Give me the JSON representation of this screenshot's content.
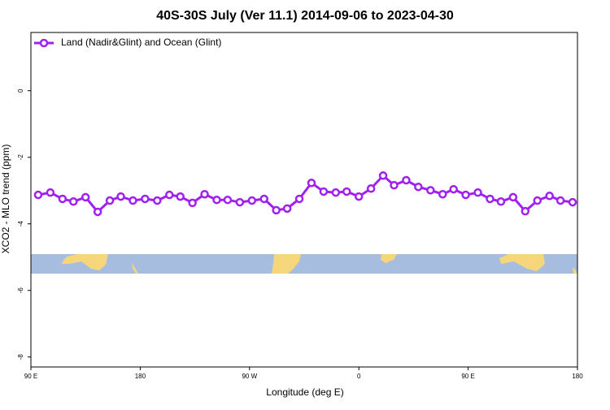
{
  "chart_data": {
    "type": "line",
    "title": "40S-30S July (Ver 11.1)   2014-09-06 to 2023-04-30",
    "x_label": "Longitude (deg E)",
    "y_label": "XCO2 - MLO trend (ppm)",
    "x": [
      96,
      106,
      116,
      125,
      135,
      145,
      155,
      164,
      174,
      184,
      194,
      204,
      213,
      223,
      233,
      243,
      252,
      262,
      272,
      282,
      292,
      301,
      311,
      321,
      331,
      341,
      350,
      360,
      370,
      380,
      389,
      399,
      409,
      419,
      429,
      438,
      448,
      458,
      468,
      477,
      487,
      497,
      507,
      517,
      526,
      536
    ],
    "series": [
      {
        "name": "Land (Nadir&Glint) and Ocean (Glint)",
        "color": "#a020f0",
        "values": [
          -3.13,
          -3.06,
          -3.25,
          -3.33,
          -3.2,
          -3.64,
          -3.3,
          -3.18,
          -3.3,
          -3.25,
          -3.3,
          -3.13,
          -3.18,
          -3.37,
          -3.11,
          -3.28,
          -3.28,
          -3.35,
          -3.3,
          -3.25,
          -3.59,
          -3.54,
          -3.25,
          -2.77,
          -3.03,
          -3.06,
          -3.03,
          -3.18,
          -2.94,
          -2.55,
          -2.84,
          -2.69,
          -2.89,
          -2.99,
          -3.11,
          -2.96,
          -3.13,
          -3.06,
          -3.25,
          -3.33,
          -3.2,
          -3.62,
          -3.3,
          -3.16,
          -3.3,
          -3.35
        ]
      }
    ],
    "xlim": [
      90,
      540
    ],
    "xticks": [
      {
        "value": 90,
        "label": "90 E"
      },
      180,
      {
        "value": 270,
        "label": "90 W"
      },
      {
        "value": 360,
        "label": "0"
      },
      {
        "value": 450,
        "label": "90 E"
      },
      {
        "value": 540,
        "label": "180"
      }
    ],
    "ylim": [
      -8.3,
      1.75
    ],
    "yticks": [
      -8,
      -6,
      -4,
      -2,
      0
    ],
    "legend": "top-left"
  }
}
